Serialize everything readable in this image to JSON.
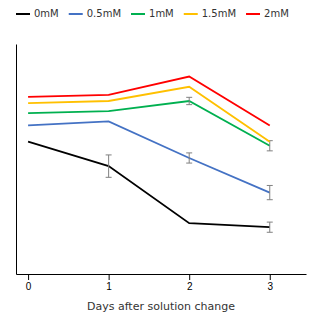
{
  "chart_data": {
    "type": "line",
    "xlabel": "Days after solution change",
    "x": [
      0,
      1,
      2,
      3
    ],
    "series": [
      {
        "name": "0mM",
        "color": "#000000",
        "values": [
          7.3,
          7.18,
          6.9,
          6.88
        ],
        "errors": [
          0.0,
          0.055,
          0.0,
          0.025
        ]
      },
      {
        "name": "0.5mM",
        "color": "#4472C4",
        "values": [
          7.38,
          7.4,
          7.22,
          7.05
        ],
        "errors": [
          0.0,
          0.0,
          0.025,
          0.035
        ]
      },
      {
        "name": "1mM",
        "color": "#00B050",
        "values": [
          7.44,
          7.45,
          7.5,
          7.28
        ],
        "errors": [
          0.0,
          0.0,
          0.018,
          0.025
        ]
      },
      {
        "name": "1.5mM",
        "color": "#FFC000",
        "values": [
          7.49,
          7.5,
          7.57,
          7.3
        ],
        "errors": [
          0.0,
          0.0,
          0.0,
          0.0
        ]
      },
      {
        "name": "2mM",
        "color": "#FF0000",
        "values": [
          7.52,
          7.53,
          7.62,
          7.38
        ],
        "errors": [
          0.0,
          0.0,
          0.0,
          0.0
        ]
      }
    ],
    "xlim": [
      -0.15,
      3.45
    ],
    "ylim": [
      6.65,
      7.78
    ],
    "xticks": [
      0,
      1,
      2,
      3
    ],
    "yticks": [],
    "tick_labels": "x",
    "grid": false,
    "legend": "top"
  }
}
